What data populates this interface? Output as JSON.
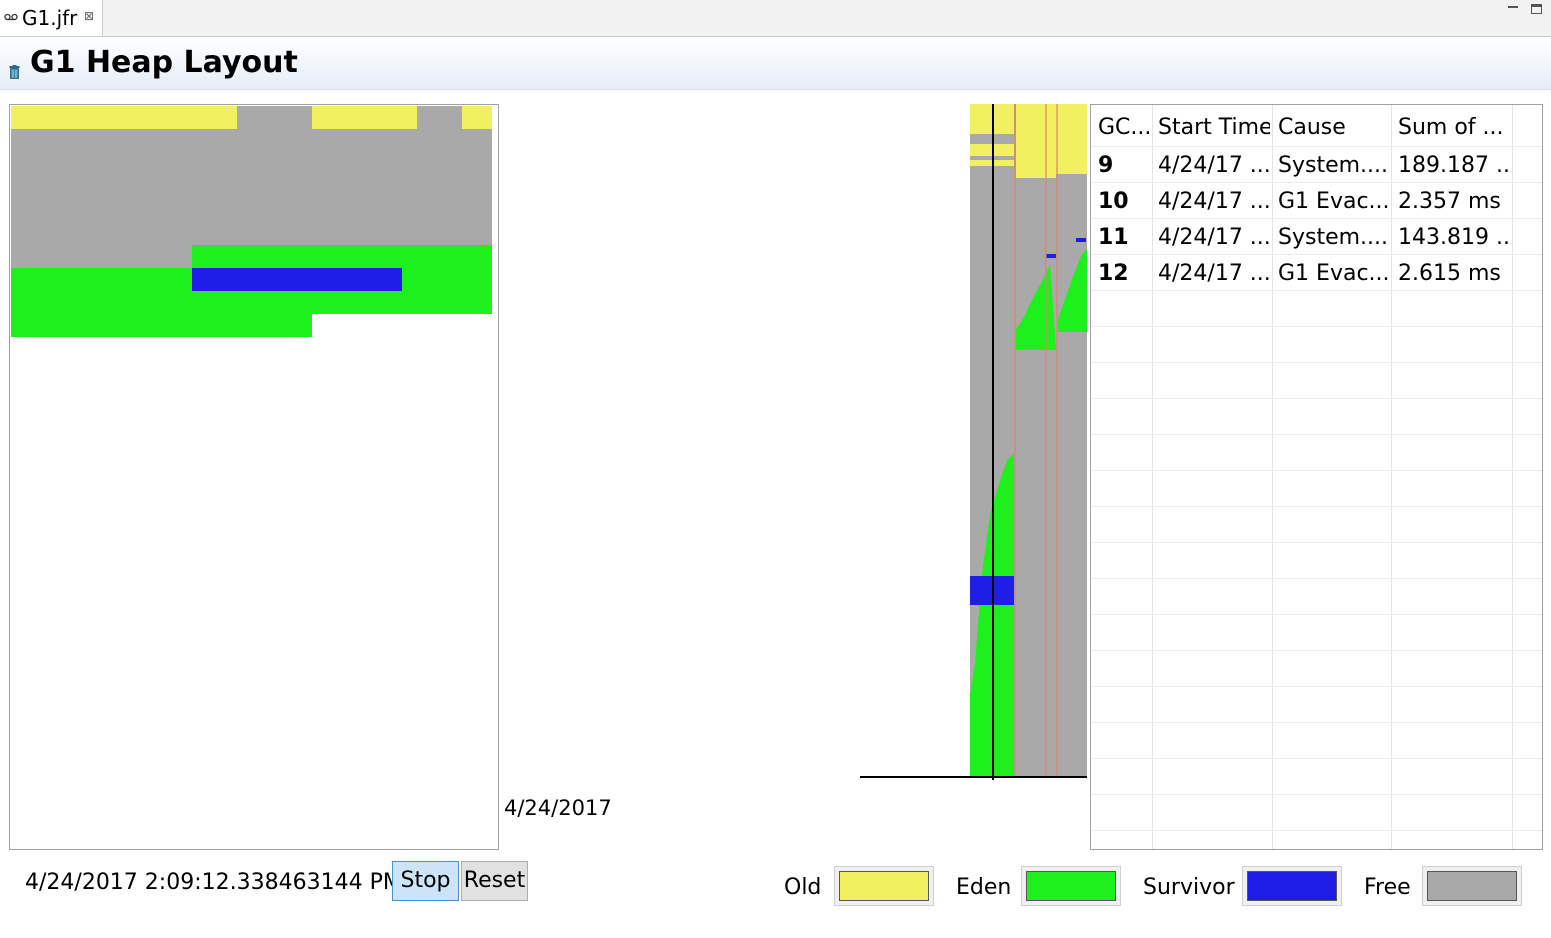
{
  "tab": {
    "title": "G1.jfr",
    "close_glyph": "⊠"
  },
  "header": {
    "title": "G1 Heap Layout",
    "icon": "trash-icon"
  },
  "colors": {
    "old": "#f0f060",
    "eden": "#1ef01e",
    "survivor": "#1e1ee6",
    "free": "#a9a9a9"
  },
  "timeline": {
    "date_label": "4/24/2017"
  },
  "table": {
    "columns": [
      "GC...",
      "Start Time",
      "Cause",
      "Sum of ..."
    ],
    "rows": [
      {
        "gc": "9",
        "start": "4/24/17 ...",
        "cause": "System....",
        "sum": "189.187 ..."
      },
      {
        "gc": "10",
        "start": "4/24/17 ...",
        "cause": "G1 Evac...",
        "sum": "2.357 ms"
      },
      {
        "gc": "11",
        "start": "4/24/17 ...",
        "cause": "System....",
        "sum": "143.819 ..."
      },
      {
        "gc": "12",
        "start": "4/24/17 ...",
        "cause": "G1 Evac...",
        "sum": "2.615 ms"
      }
    ]
  },
  "controls": {
    "timestamp": "4/24/2017 2:09:12.338463144 PM",
    "stop_label": "Stop",
    "reset_label": "Reset"
  },
  "legend": {
    "old": "Old",
    "eden": "Eden",
    "survivor": "Survivor",
    "free": "Free"
  }
}
